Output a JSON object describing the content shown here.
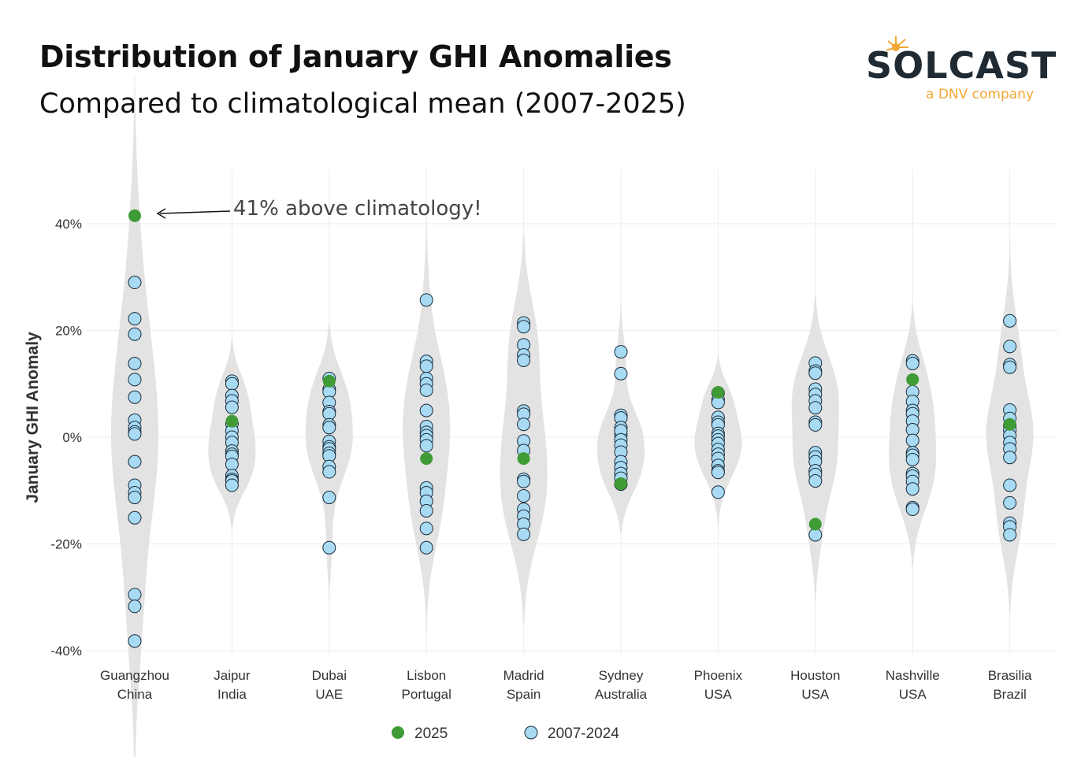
{
  "header": {
    "title": "Distribution of January GHI Anomalies",
    "subtitle": "Compared to climatological mean (2007-2025)"
  },
  "logo": {
    "brand": "SOLCAST",
    "tagline": "a DNV company",
    "accent_color": "#f2a634",
    "brand_color": "#1f2a33"
  },
  "chart_data": {
    "type": "scatter",
    "subtype": "violin-with-points",
    "ylabel": "January GHI Anomaly",
    "xlabel": "",
    "ylim": [
      -40,
      50
    ],
    "y_ticks": [
      40,
      20,
      0,
      -20,
      -40
    ],
    "y_tick_labels": [
      "40%",
      "20%",
      "0%",
      "-20%",
      "-40%"
    ],
    "grid": true,
    "legend_position": "bottom",
    "annotation": {
      "text": "41% above climatology!",
      "category": "Guangzhou China",
      "value": 41.5
    },
    "categories": [
      {
        "city": "Guangzhou",
        "country": "China"
      },
      {
        "city": "Jaipur",
        "country": "India"
      },
      {
        "city": "Dubai",
        "country": "UAE"
      },
      {
        "city": "Lisbon",
        "country": "Portugal"
      },
      {
        "city": "Madrid",
        "country": "Spain"
      },
      {
        "city": "Sydney",
        "country": "Australia"
      },
      {
        "city": "Phoenix",
        "country": "USA"
      },
      {
        "city": "Houston",
        "country": "USA"
      },
      {
        "city": "Nashville",
        "country": "USA"
      },
      {
        "city": "Brasilia",
        "country": "Brazil"
      }
    ],
    "series": [
      {
        "name": "2025",
        "color": "#3f9b35",
        "values": [
          41.5,
          3.0,
          10.5,
          -4.0,
          -4.0,
          -8.7,
          8.4,
          -16.3,
          10.8,
          2.4
        ]
      },
      {
        "name": "2007-2024",
        "color": "#a8dbf3",
        "values": [
          [
            29,
            22.2,
            19.3,
            13.8,
            10.8,
            7.5,
            3.2,
            1.8,
            1.0,
            0.6,
            -4.6,
            -9.0,
            -10.4,
            -11.3,
            -15.1,
            -29.5,
            -31.7,
            -38.2
          ],
          [
            10.5,
            10.0,
            7.8,
            6.8,
            5.6,
            2.5,
            1.2,
            0,
            -1.0,
            -2.6,
            -3.2,
            -3.6,
            -5.1,
            -7.2,
            -7.9,
            -8.2,
            -9.0
          ],
          [
            11.0,
            9.0,
            8.5,
            6.5,
            4.8,
            4.4,
            2.3,
            1.8,
            -0.8,
            -1.8,
            -2.2,
            -3.0,
            -3.5,
            -5.5,
            -6.5,
            -11.3,
            -20.7
          ],
          [
            25.7,
            14.2,
            13.3,
            11.0,
            10.0,
            8.8,
            5.0,
            2.0,
            0.9,
            0.3,
            -0.5,
            -1.6,
            -9.5,
            -10.4,
            -12.0,
            -13.8,
            -17.1,
            -20.7
          ],
          [
            21.4,
            20.7,
            17.3,
            15.4,
            14.4,
            4.9,
            4.3,
            2.4,
            -0.7,
            -2.5,
            -7.9,
            -8.3,
            -11.0,
            -13.5,
            -14.8,
            -16.3,
            -18.2
          ],
          [
            16.0,
            11.9,
            4.1,
            3.6,
            1.8,
            0.4,
            1.2,
            -0.5,
            -1.5,
            -2.8,
            -4.6,
            -5.7,
            -6.8,
            -7.7,
            -8.8
          ],
          [
            8.3,
            7.0,
            6.5,
            3.7,
            2.8,
            2.3,
            0.7,
            0.2,
            -0.5,
            -1.2,
            -2.3,
            -3.2,
            -4.0,
            -5.3,
            -6.3,
            -6.6,
            -10.3
          ],
          [
            13.9,
            12.4,
            12.0,
            9.0,
            8.0,
            6.8,
            5.5,
            2.8,
            2.3,
            -2.9,
            -3.7,
            -4.6,
            -6.3,
            -7.0,
            -8.2,
            -18.3
          ],
          [
            14.3,
            13.8,
            8.5,
            6.7,
            5.0,
            4.4,
            3.0,
            1.4,
            -0.6,
            -2.9,
            -3.4,
            -4.2,
            -6.8,
            -7.3,
            -8.3,
            -9.7,
            -13.2,
            -13.5
          ],
          [
            21.8,
            17.0,
            13.6,
            13.1,
            5.1,
            3.5,
            2.2,
            1.3,
            0.3,
            -1.0,
            -2.2,
            -3.8,
            -9.0,
            -12.3,
            -16.1,
            -16.8,
            -18.3
          ]
        ]
      }
    ]
  }
}
